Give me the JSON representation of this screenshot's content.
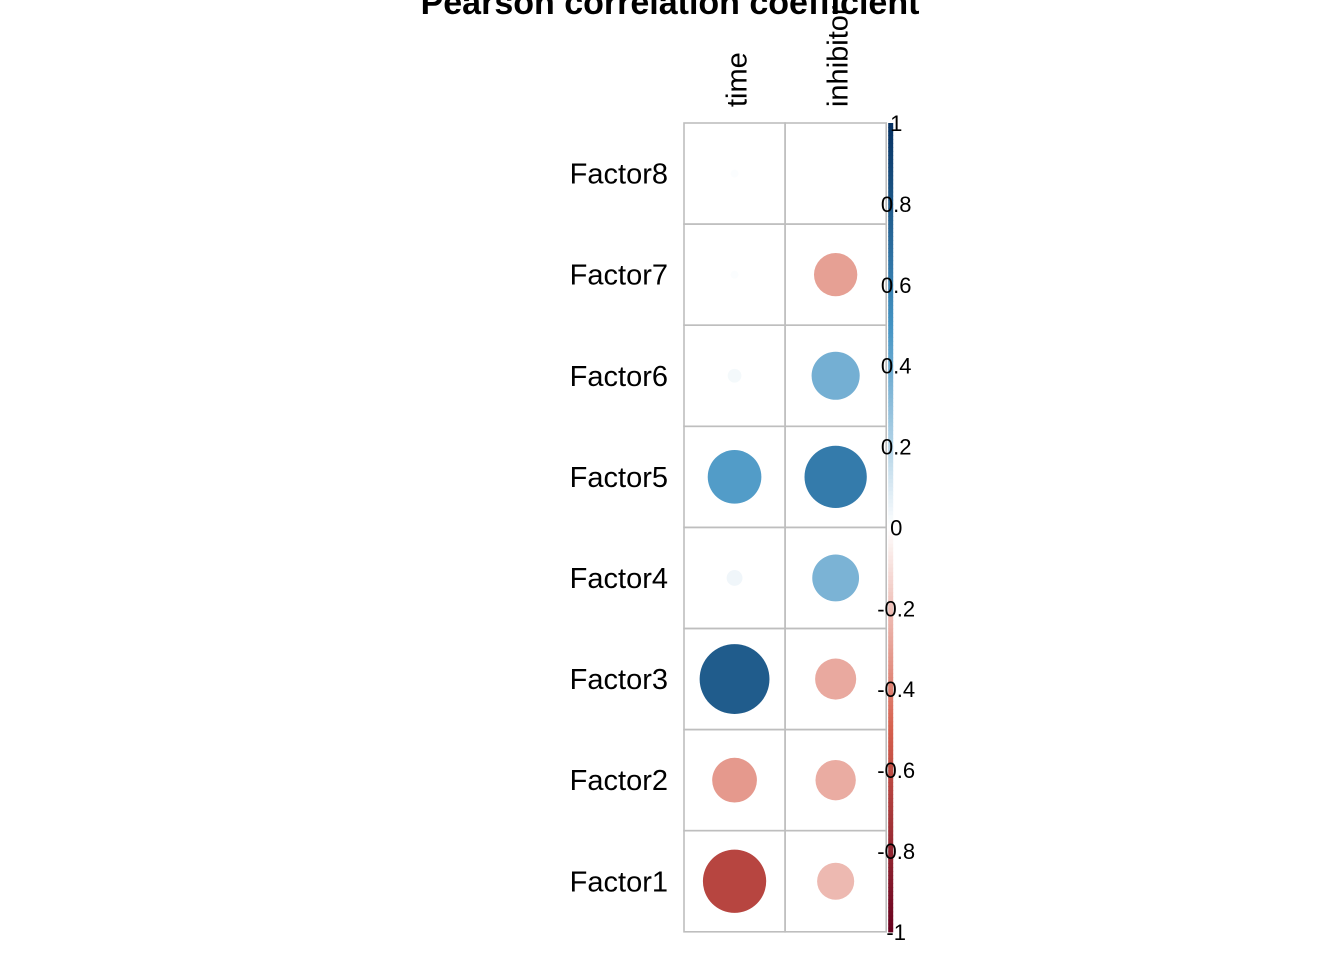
{
  "chart_data": {
    "type": "heatmap",
    "title": "Pearson correlation coefficient",
    "columns": [
      "time",
      "inhibitor"
    ],
    "rows": [
      "Factor8",
      "Factor7",
      "Factor6",
      "Factor5",
      "Factor4",
      "Factor3",
      "Factor2",
      "Factor1"
    ],
    "values": [
      [
        0.01,
        0.0
      ],
      [
        0.01,
        -0.3
      ],
      [
        0.03,
        0.37
      ],
      [
        0.46,
        0.62
      ],
      [
        0.04,
        0.35
      ],
      [
        0.78,
        -0.27
      ],
      [
        -0.32,
        -0.26
      ],
      [
        -0.64,
        -0.22
      ]
    ],
    "colorbar": {
      "range": [
        -1,
        1
      ],
      "ticks": [
        "1",
        "0.8",
        "0.6",
        "0.4",
        "0.2",
        "0",
        "-0.2",
        "-0.4",
        "-0.6",
        "-0.8",
        "-1"
      ]
    },
    "colors": {
      "negative_end": "#67001F",
      "negative_mid": "#D6604D",
      "neutral": "#FFFFFF",
      "positive_mid": "#4393C3",
      "positive_end": "#053061",
      "grid": "#BEBEBE"
    }
  }
}
